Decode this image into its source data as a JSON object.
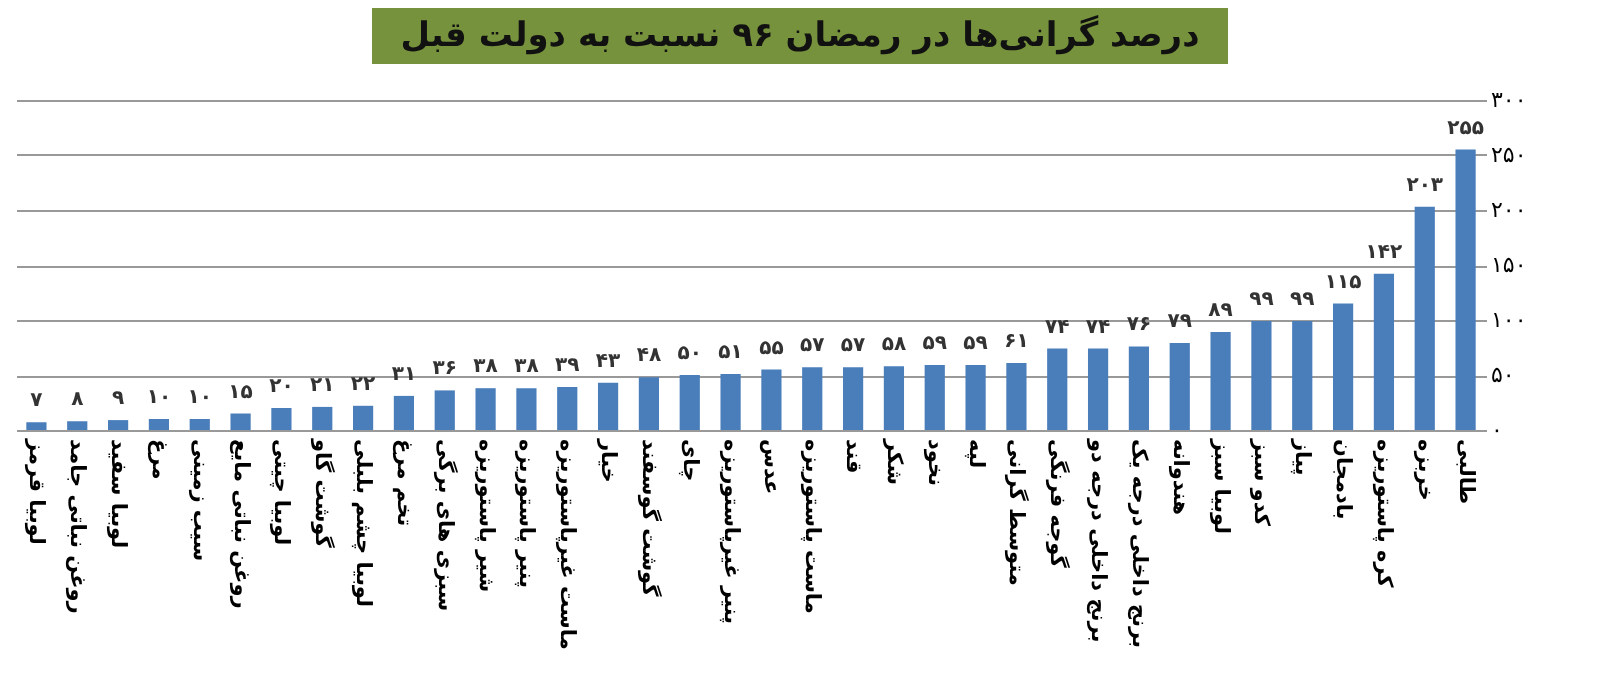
{
  "chart_data": {
    "type": "bar",
    "title": "درصد گرانی‌ها در رمضان ۹۶ نسبت به دولت قبل",
    "categories": [
      "لوبیا قرمز",
      "روغن نباتی جامد",
      "لوبیا سفید",
      "مرغ",
      "سیب زمینی",
      "روغن نباتی مایع",
      "لوبیا چیتی",
      "گوشت گاو",
      "لوبیا چشم بلبلی",
      "تخم مرغ",
      "سبزی های برگی",
      "شیر پاستوریزه",
      "پنیر پاستوریزه",
      "ماست غیرپاستوریزه",
      "خیار",
      "گوشت گوسفند",
      "چای",
      "پنیر غیرپاستوریزه",
      "عدس",
      "ماست پاستوریزه",
      "قند",
      "شکر",
      "نخود",
      "لپه",
      "متوسط گرانی",
      "گوجه فرنگی",
      "برنج داخلی درجه دو",
      "برنج داخلی درجه یک",
      "هندوانه",
      "لوبیا سبز",
      "کدو سبز",
      "پیاز",
      "بادمجان",
      "کره پاستوریزه",
      "خربزه",
      "طالبی"
    ],
    "values": [
      7,
      8,
      9,
      10,
      10,
      15,
      20,
      21,
      22,
      31,
      36,
      38,
      38,
      39,
      43,
      48,
      50,
      51,
      55,
      57,
      57,
      58,
      59,
      59,
      61,
      74,
      74,
      76,
      79,
      89,
      99,
      99,
      115,
      142,
      203,
      255
    ],
    "value_labels": [
      "۷",
      "۸",
      "۹",
      "۱۰",
      "۱۰",
      "۱۵",
      "۲۰",
      "۲۱",
      "۲۲",
      "۳۱",
      "۳۶",
      "۳۸",
      "۳۸",
      "۳۹",
      "۴۳",
      "۴۸",
      "۵۰",
      "۵۱",
      "۵۵",
      "۵۷",
      "۵۷",
      "۵۸",
      "۵۹",
      "۵۹",
      "۶۱",
      "۷۴",
      "۷۴",
      "۷۶",
      "۷۹",
      "۸۹",
      "۹۹",
      "۹۹",
      "۱۱۵",
      "۱۴۲",
      "۲۰۳",
      "۲۵۵"
    ],
    "color": "#4a7ebb",
    "ylim": [
      0,
      300
    ],
    "yticks": [
      {
        "value": 0,
        "label": "۰"
      },
      {
        "value": 50,
        "label": "۵۰"
      },
      {
        "value": 100,
        "label": "۱۰۰"
      },
      {
        "value": 150,
        "label": "۱۵۰"
      },
      {
        "value": 200,
        "label": "۲۰۰"
      },
      {
        "value": 250,
        "label": "۲۵۰"
      },
      {
        "value": 300,
        "label": "۳۰۰"
      }
    ],
    "grid": "y"
  }
}
